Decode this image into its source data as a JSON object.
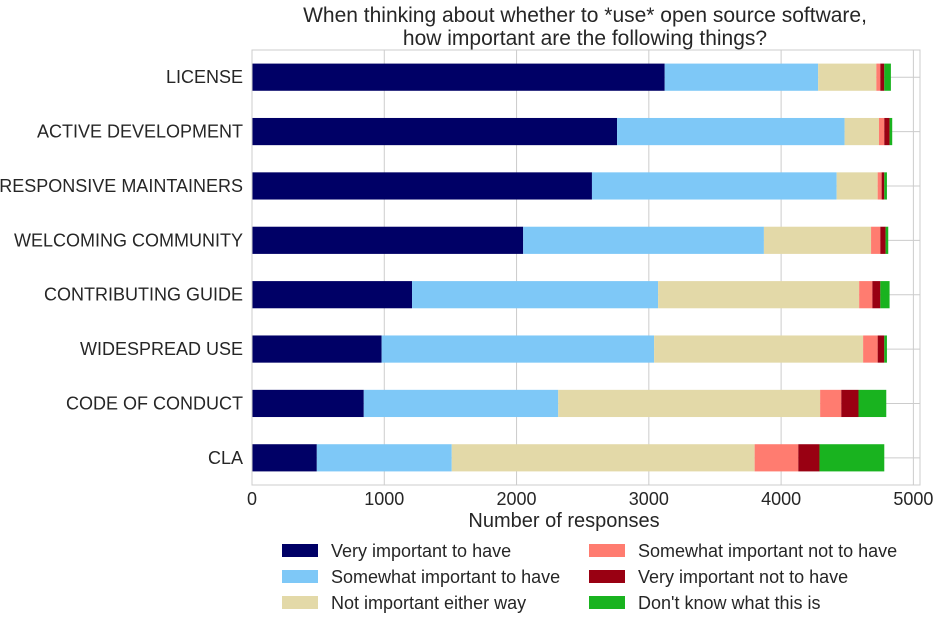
{
  "chart_data": {
    "type": "bar",
    "orientation": "horizontal",
    "stacked": true,
    "title_lines": [
      "When thinking about whether to *use* open source software,",
      "how important are the following things?"
    ],
    "xlabel": "Number of responses",
    "ylabel": "",
    "xlim": [
      0,
      5050
    ],
    "x_ticks": [
      0,
      1000,
      2000,
      3000,
      4000,
      5000
    ],
    "x_tick_labels": [
      "0",
      "1000",
      "2000",
      "3000",
      "4000",
      "5000"
    ],
    "grid": true,
    "legend_position": "bottom",
    "categories": [
      "LICENSE",
      "ACTIVE DEVELOPMENT",
      "RESPONSIVE MAINTAINERS",
      "WELCOMING COMMUNITY",
      "CONTRIBUTING GUIDE",
      "WIDESPREAD USE",
      "CODE OF CONDUCT",
      "CLA"
    ],
    "series": [
      {
        "name": "Very important to have",
        "color": "#000066",
        "values": [
          3120,
          2760,
          2570,
          2050,
          1210,
          980,
          845,
          490
        ]
      },
      {
        "name": "Somewhat important to have",
        "color": "#7ec8f7",
        "values": [
          1160,
          1720,
          1850,
          1820,
          1860,
          2060,
          1470,
          1020
        ]
      },
      {
        "name": "Not important either way",
        "color": "#e3d9a8",
        "values": [
          440,
          260,
          310,
          810,
          1520,
          1580,
          1980,
          2290
        ]
      },
      {
        "name": "Somewhat important not to have",
        "color": "#ff7c70",
        "values": [
          30,
          40,
          30,
          70,
          100,
          110,
          160,
          330
        ]
      },
      {
        "name": "Very important not to have",
        "color": "#990012",
        "values": [
          30,
          40,
          20,
          40,
          60,
          50,
          130,
          160
        ]
      },
      {
        "name": "Don't know what this is",
        "color": "#19b31f",
        "values": [
          50,
          20,
          20,
          20,
          70,
          20,
          210,
          490
        ]
      }
    ]
  }
}
